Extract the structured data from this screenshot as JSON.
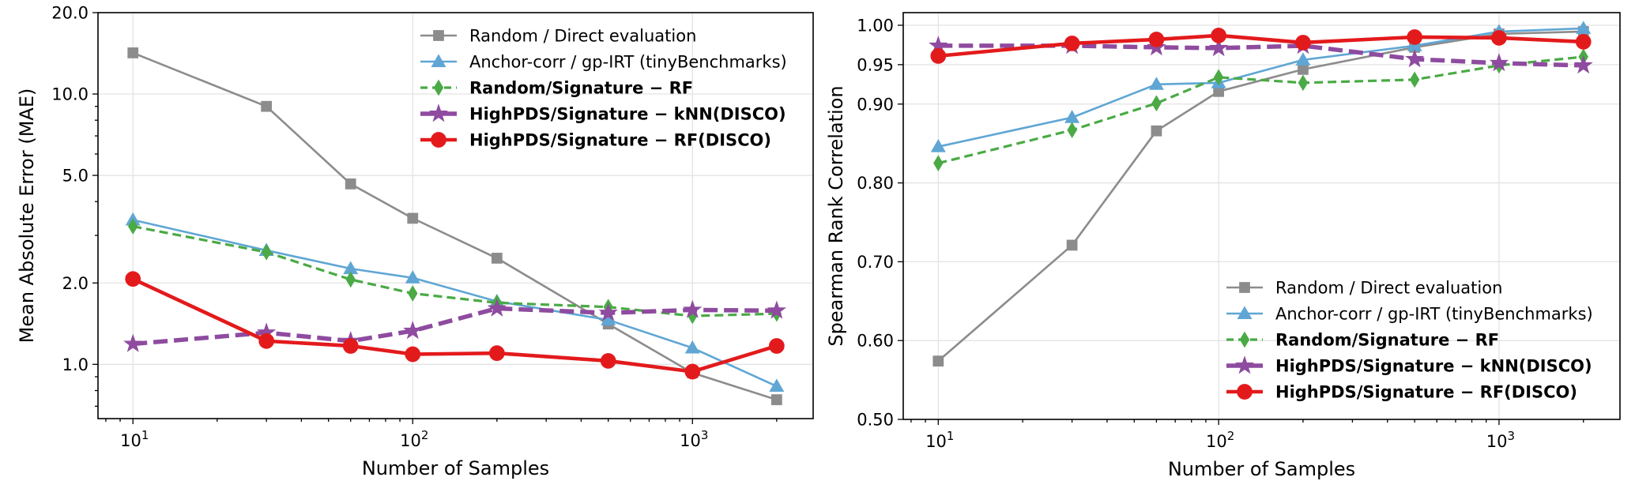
{
  "chart_data": [
    {
      "type": "line",
      "id": "mae",
      "title": "",
      "xlabel": "Number of Samples",
      "ylabel": "Mean Absolute Error (MAE)",
      "xscale": "log",
      "yscale": "log",
      "xlim": [
        7.5,
        2700
      ],
      "ylim": [
        0.63,
        20.0
      ],
      "grid": true,
      "legend_position": "top-right",
      "x": [
        10,
        30,
        60,
        100,
        200,
        500,
        1000,
        2000
      ],
      "xticks": [
        {
          "value": 10,
          "base": "10",
          "exp": "1"
        },
        {
          "value": 100,
          "base": "10",
          "exp": "2"
        },
        {
          "value": 1000,
          "base": "10",
          "exp": "3"
        }
      ],
      "yticks": [
        {
          "value": 1.0,
          "label": "1.0"
        },
        {
          "value": 2.0,
          "label": "2.0"
        },
        {
          "value": 5.0,
          "label": "5.0"
        },
        {
          "value": 10.0,
          "label": "10.0"
        },
        {
          "value": 20.0,
          "label": "20.0"
        }
      ],
      "series": [
        {
          "name": "Random / Direct evaluation",
          "color": "#8c8c8c",
          "marker": "square",
          "dash": "solid",
          "bold": false,
          "values": [
            14.2,
            9.0,
            4.65,
            3.47,
            2.47,
            1.41,
            0.93,
            0.74
          ]
        },
        {
          "name": "Anchor-corr / gp-IRT (tinyBenchmarks)",
          "color": "#5fa6d4",
          "marker": "triangle",
          "dash": "solid",
          "bold": false,
          "values": [
            3.42,
            2.64,
            2.26,
            2.09,
            1.71,
            1.46,
            1.15,
            0.83
          ]
        },
        {
          "name": "Random/Signature − RF",
          "color": "#4aaa45",
          "marker": "diamond",
          "dash": "dashed",
          "bold": true,
          "values": [
            3.24,
            2.6,
            2.06,
            1.83,
            1.69,
            1.63,
            1.51,
            1.54
          ]
        },
        {
          "name": "HighPDS/Signature − kNN(DISCO)",
          "color": "#8e4b9f",
          "marker": "star",
          "dash": "dashed-thick",
          "bold": true,
          "values": [
            1.19,
            1.31,
            1.22,
            1.33,
            1.61,
            1.55,
            1.59,
            1.58
          ]
        },
        {
          "name": "HighPDS/Signature − RF(DISCO)",
          "color": "#e31a1c",
          "marker": "circle",
          "dash": "solid-thick",
          "bold": true,
          "values": [
            2.07,
            1.22,
            1.17,
            1.09,
            1.1,
            1.03,
            0.94,
            1.17
          ]
        }
      ]
    },
    {
      "type": "line",
      "id": "spearman",
      "title": "",
      "xlabel": "Number of Samples",
      "ylabel": "Spearman Rank Correlation",
      "xscale": "log",
      "yscale": "linear",
      "xlim": [
        7.5,
        2700
      ],
      "ylim": [
        0.5,
        1.016
      ],
      "grid": true,
      "legend_position": "bottom-right",
      "x": [
        10,
        30,
        60,
        100,
        200,
        500,
        1000,
        2000
      ],
      "xticks": [
        {
          "value": 10,
          "base": "10",
          "exp": "1"
        },
        {
          "value": 100,
          "base": "10",
          "exp": "2"
        },
        {
          "value": 1000,
          "base": "10",
          "exp": "3"
        }
      ],
      "yticks": [
        {
          "value": 0.5,
          "label": "0.50"
        },
        {
          "value": 0.6,
          "label": "0.60"
        },
        {
          "value": 0.7,
          "label": "0.70"
        },
        {
          "value": 0.8,
          "label": "0.80"
        },
        {
          "value": 0.9,
          "label": "0.90"
        },
        {
          "value": 0.95,
          "label": "0.95"
        },
        {
          "value": 1.0,
          "label": "1.00"
        }
      ],
      "series": [
        {
          "name": "Random / Direct evaluation",
          "color": "#8c8c8c",
          "marker": "square",
          "dash": "solid",
          "bold": false,
          "values": [
            0.574,
            0.721,
            0.866,
            0.916,
            0.944,
            0.972,
            0.989,
            0.992
          ]
        },
        {
          "name": "Anchor-corr / gp-IRT (tinyBenchmarks)",
          "color": "#5fa6d4",
          "marker": "triangle",
          "dash": "solid",
          "bold": false,
          "values": [
            0.846,
            0.883,
            0.925,
            0.927,
            0.956,
            0.974,
            0.992,
            0.996
          ]
        },
        {
          "name": "Random/Signature − RF",
          "color": "#4aaa45",
          "marker": "diamond",
          "dash": "dashed",
          "bold": true,
          "values": [
            0.825,
            0.867,
            0.901,
            0.934,
            0.927,
            0.931,
            0.949,
            0.96
          ]
        },
        {
          "name": "HighPDS/Signature − kNN(DISCO)",
          "color": "#8e4b9f",
          "marker": "star",
          "dash": "dashed-thick",
          "bold": true,
          "values": [
            0.974,
            0.974,
            0.972,
            0.971,
            0.974,
            0.957,
            0.952,
            0.949
          ]
        },
        {
          "name": "HighPDS/Signature − RF(DISCO)",
          "color": "#e31a1c",
          "marker": "circle",
          "dash": "solid-thick",
          "bold": true,
          "values": [
            0.961,
            0.977,
            0.982,
            0.987,
            0.978,
            0.985,
            0.984,
            0.979
          ]
        }
      ]
    }
  ]
}
